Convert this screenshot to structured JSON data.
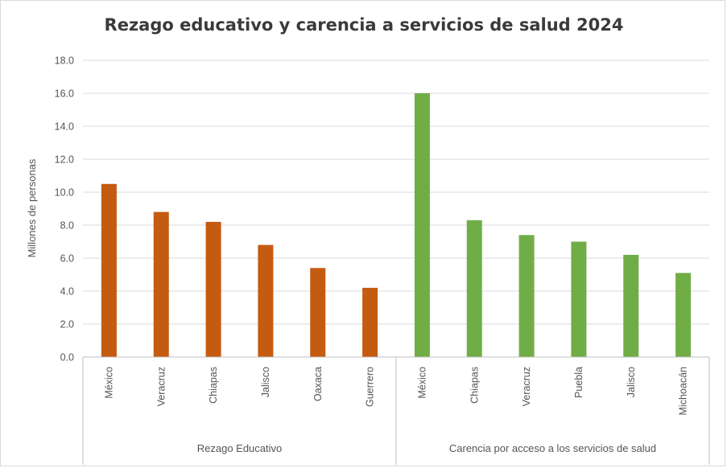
{
  "chart_data": {
    "type": "bar",
    "title": "Rezago educativo y carencia a servicios de salud 2024",
    "xlabel": "",
    "ylabel": "Millones de personas",
    "ylim": [
      0,
      18
    ],
    "yticks": [
      "0.0",
      "2.0",
      "4.0",
      "6.0",
      "8.0",
      "10.0",
      "12.0",
      "14.0",
      "16.0",
      "18.0"
    ],
    "grid": true,
    "legend": "none",
    "groups": [
      {
        "label": "Rezago Educativo",
        "color": "#c55a11",
        "categories": [
          "México",
          "Veracruz",
          "Chiapas",
          "Jalisco",
          "Oaxaca",
          "Guerrero"
        ],
        "values": [
          10.5,
          8.8,
          8.2,
          6.8,
          5.4,
          4.2
        ]
      },
      {
        "label": "Carencia por acceso a los servicios de salud",
        "color": "#70ad47",
        "categories": [
          "México",
          "Chiapas",
          "Veracruz",
          "Puebla",
          "Jalisco",
          "Michoacán"
        ],
        "values": [
          16.0,
          8.3,
          7.4,
          7.0,
          6.2,
          5.1
        ]
      }
    ]
  }
}
